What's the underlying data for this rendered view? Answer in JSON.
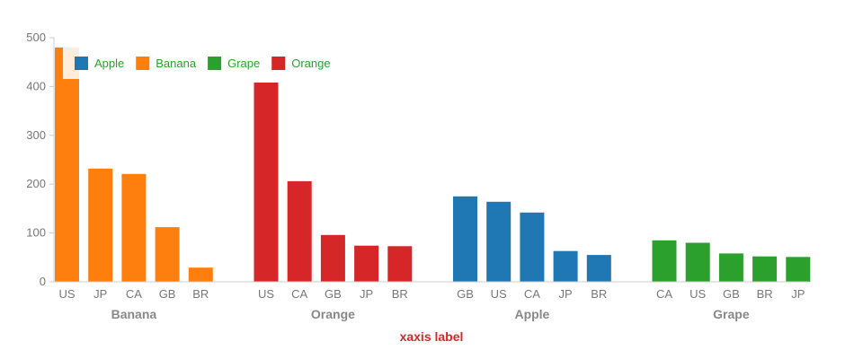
{
  "chart_data": {
    "type": "bar",
    "xlabel": "xaxis label",
    "ylabel": "",
    "ylim": [
      0,
      500
    ],
    "yticks": [
      0,
      100,
      200,
      300,
      400,
      500
    ],
    "grid": false,
    "legend_position": "top-left",
    "legend": [
      "Apple",
      "Banana",
      "Grape",
      "Orange"
    ],
    "colors": {
      "Apple": "#1f77b4",
      "Banana": "#ff7f0e",
      "Grape": "#2ca02c",
      "Orange": "#d62728",
      "legend_text": "#2ca02c",
      "xlabel": "#d62728"
    },
    "groups": [
      {
        "name": "Banana",
        "categories": [
          "US",
          "JP",
          "CA",
          "GB",
          "BR"
        ],
        "values": [
          480,
          232,
          221,
          112,
          29
        ]
      },
      {
        "name": "Orange",
        "categories": [
          "US",
          "CA",
          "GB",
          "JP",
          "BR"
        ],
        "values": [
          408,
          206,
          96,
          74,
          73
        ]
      },
      {
        "name": "Apple",
        "categories": [
          "GB",
          "US",
          "CA",
          "JP",
          "BR"
        ],
        "values": [
          175,
          164,
          142,
          63,
          55
        ]
      },
      {
        "name": "Grape",
        "categories": [
          "CA",
          "US",
          "GB",
          "BR",
          "JP"
        ],
        "values": [
          85,
          80,
          58,
          52,
          51
        ]
      }
    ]
  }
}
